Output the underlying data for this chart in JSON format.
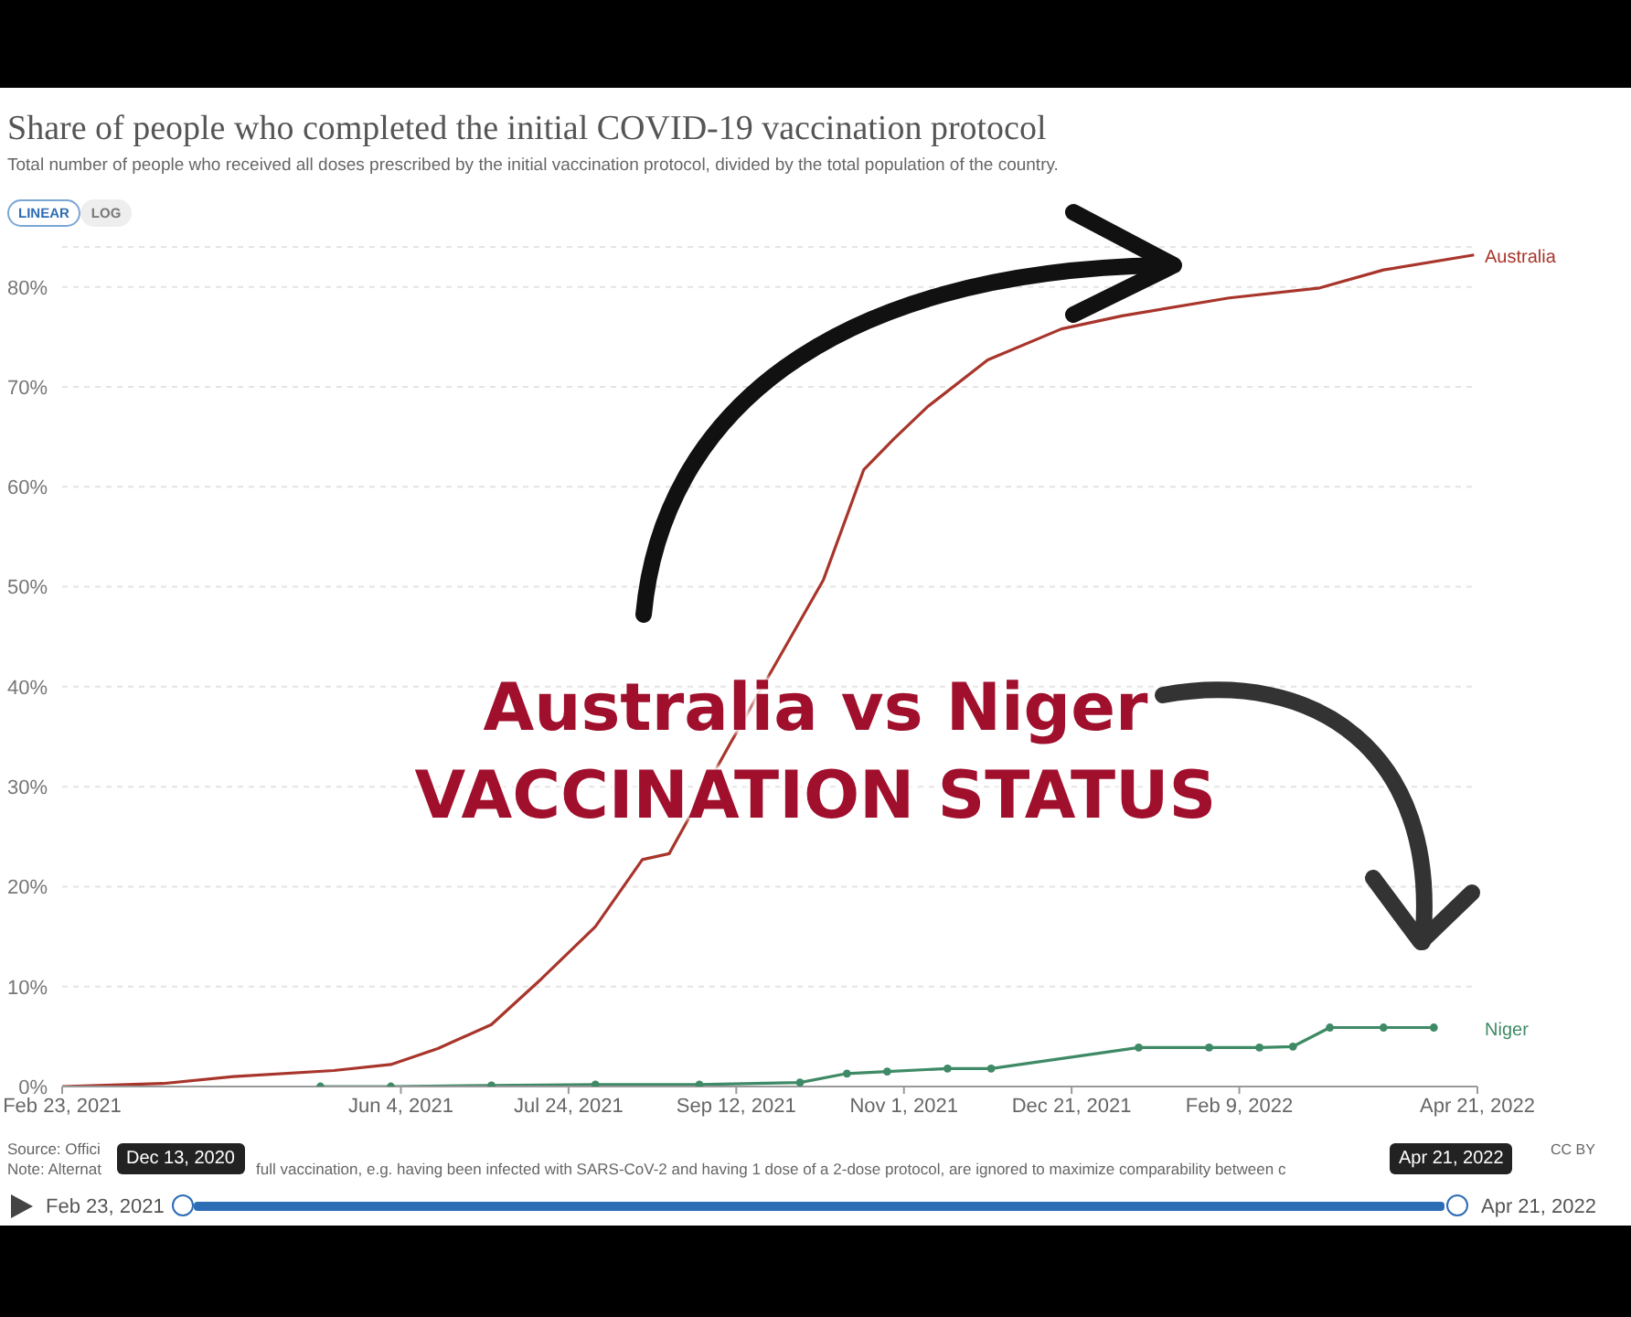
{
  "chart_data": {
    "type": "line",
    "title": "Share of people who completed the initial COVID-19 vaccination protocol",
    "subtitle": "Total number of people who received all doses prescribed by the initial vaccination protocol, divided by the total population of the country.",
    "annotations": [
      "Australia vs Niger",
      "VACCINATION STATUS",
      "Source: Offici",
      "Note: Alternat",
      "CC BY",
      "LINEAR",
      "LOG",
      "Dec 13, 2020",
      "Apr 21, 2022",
      "Feb 23, 2021",
      "Apr 21, 2022",
      "full vaccination, e.g. having been infected with SARS-CoV-2 and having 1 dose of a 2-dose protocol, are ignored to maximize comparability between c"
    ],
    "series": [
      {
        "name": "Australia",
        "color": "#a8352b",
        "marker": "none",
        "x": [
          "2021-02-23",
          "2021-03-25",
          "2021-04-15",
          "2021-05-15",
          "2021-06-01",
          "2021-06-15",
          "2021-07-01",
          "2021-07-16",
          "2021-08-01",
          "2021-08-15",
          "2021-08-23",
          "2021-09-10",
          "2021-10-08",
          "2021-10-20",
          "2021-10-29",
          "2021-11-08",
          "2021-11-26",
          "2021-12-18",
          "2022-01-05",
          "2022-02-06",
          "2022-03-05",
          "2022-03-24",
          "2022-04-20"
        ],
        "values": [
          0,
          0.3,
          1,
          1.6,
          2.2,
          3.8,
          6.2,
          10.8,
          16,
          22.7,
          23.3,
          34.2,
          50.7,
          61.7,
          64.8,
          68,
          72.7,
          75.8,
          77.1,
          78.9,
          79.9,
          81.7,
          83.2
        ]
      },
      {
        "name": "Niger",
        "color": "#3f8a66",
        "marker": "circle",
        "x": [
          "2021-05-11",
          "2021-06-01",
          "2021-07-01",
          "2021-08-01",
          "2021-09-01",
          "2021-10-01",
          "2021-10-15",
          "2021-10-27",
          "2021-11-14",
          "2021-11-27",
          "2022-01-10",
          "2022-01-31",
          "2022-02-15",
          "2022-02-25",
          "2022-03-08",
          "2022-03-24",
          "2022-04-08"
        ],
        "values": [
          0,
          0,
          0.1,
          0.2,
          0.2,
          0.4,
          1.3,
          1.5,
          1.8,
          1.8,
          3.9,
          3.9,
          3.9,
          4,
          5.9,
          5.9,
          5.9
        ]
      }
    ],
    "xlim": [
      "2021-02-23",
      "2022-04-21"
    ],
    "xticks": [
      {
        "value": "2021-02-23",
        "label": "Feb 23, 2021"
      },
      {
        "value": "2021-06-04",
        "label": "Jun 4, 2021"
      },
      {
        "value": "2021-07-24",
        "label": "Jul 24, 2021"
      },
      {
        "value": "2021-09-12",
        "label": "Sep 12, 2021"
      },
      {
        "value": "2021-11-01",
        "label": "Nov 1, 2021"
      },
      {
        "value": "2021-12-21",
        "label": "Dec 21, 2021"
      },
      {
        "value": "2022-02-09",
        "label": "Feb 9, 2022"
      },
      {
        "value": "2022-04-21",
        "label": "Apr 21, 2022"
      }
    ],
    "ylim": [
      0,
      84
    ],
    "yticks": [
      {
        "value": 0,
        "label": "0%"
      },
      {
        "value": 10,
        "label": "10%"
      },
      {
        "value": 20,
        "label": "20%"
      },
      {
        "value": 30,
        "label": "30%"
      },
      {
        "value": 40,
        "label": "40%"
      },
      {
        "value": 50,
        "label": "50%"
      },
      {
        "value": 60,
        "label": "60%"
      },
      {
        "value": 70,
        "label": "70%"
      },
      {
        "value": 80,
        "label": "80%"
      }
    ],
    "grid": "y",
    "legend": false,
    "line_style": "solid"
  }
}
